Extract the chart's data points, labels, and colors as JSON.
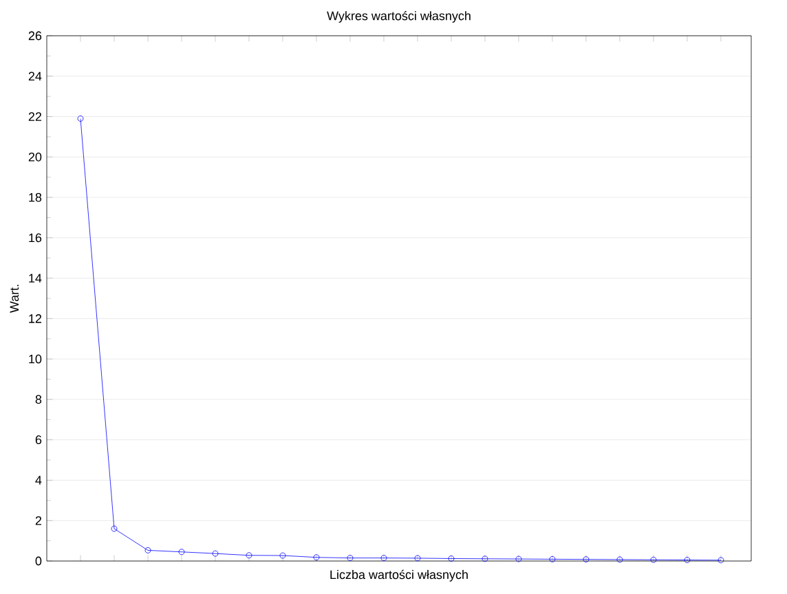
{
  "chart_data": {
    "type": "line",
    "title": "Wykres wartości własnych",
    "xlabel": "Liczba wartości własnych",
    "ylabel": "Wart.",
    "categories": [
      null,
      null,
      null,
      null,
      null,
      null,
      null,
      null,
      null,
      null,
      null,
      null,
      null,
      null,
      null,
      null,
      null,
      null,
      null,
      null
    ],
    "values": [
      21.9,
      1.6,
      0.53,
      0.45,
      0.37,
      0.28,
      0.27,
      0.18,
      0.15,
      0.15,
      0.14,
      0.12,
      0.11,
      0.1,
      0.09,
      0.08,
      0.07,
      0.06,
      0.05,
      0.04
    ],
    "color": "#0000ff",
    "marker": "circle",
    "line_style": "solid",
    "grid": "y",
    "ylim": [
      0,
      26
    ],
    "yticks": [
      0,
      2,
      4,
      6,
      8,
      10,
      12,
      14,
      16,
      18,
      20,
      22,
      24,
      26
    ],
    "tick_labels": "y"
  }
}
